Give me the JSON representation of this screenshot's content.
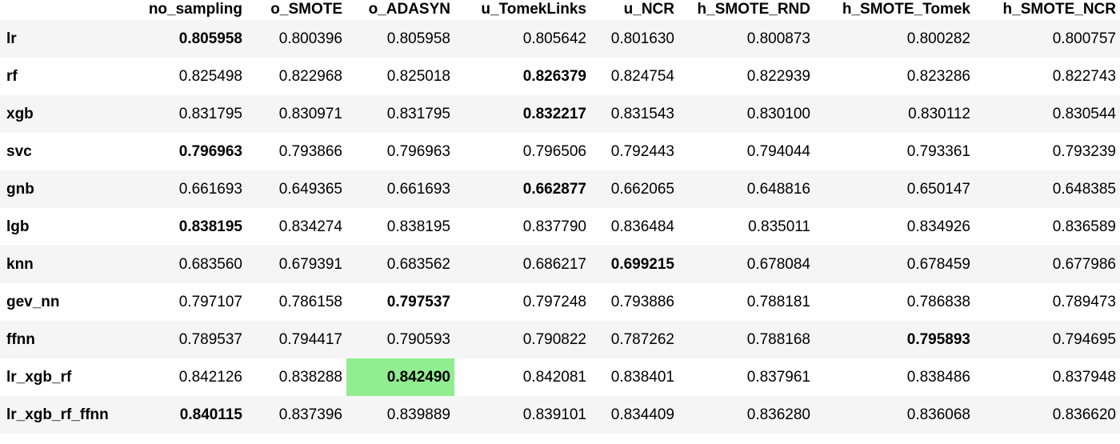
{
  "highlight_color": "#90ee90",
  "stripe_color": "#f5f5f5",
  "table": {
    "columns": [
      "no_sampling",
      "o_SMOTE",
      "o_ADASYN",
      "u_TomekLinks",
      "u_NCR",
      "h_SMOTE_RND",
      "h_SMOTE_Tomek",
      "h_SMOTE_NCR"
    ],
    "rows": [
      {
        "label": "lr",
        "values": [
          "0.805958",
          "0.800396",
          "0.805958",
          "0.805642",
          "0.801630",
          "0.800873",
          "0.800282",
          "0.800757"
        ],
        "bold": [
          0
        ]
      },
      {
        "label": "rf",
        "values": [
          "0.825498",
          "0.822968",
          "0.825018",
          "0.826379",
          "0.824754",
          "0.822939",
          "0.823286",
          "0.822743"
        ],
        "bold": [
          3
        ]
      },
      {
        "label": "xgb",
        "values": [
          "0.831795",
          "0.830971",
          "0.831795",
          "0.832217",
          "0.831543",
          "0.830100",
          "0.830112",
          "0.830544"
        ],
        "bold": [
          3
        ]
      },
      {
        "label": "svc",
        "values": [
          "0.796963",
          "0.793866",
          "0.796963",
          "0.796506",
          "0.792443",
          "0.794044",
          "0.793361",
          "0.793239"
        ],
        "bold": [
          0
        ]
      },
      {
        "label": "gnb",
        "values": [
          "0.661693",
          "0.649365",
          "0.661693",
          "0.662877",
          "0.662065",
          "0.648816",
          "0.650147",
          "0.648385"
        ],
        "bold": [
          3
        ]
      },
      {
        "label": "lgb",
        "values": [
          "0.838195",
          "0.834274",
          "0.838195",
          "0.837790",
          "0.836484",
          "0.835011",
          "0.834926",
          "0.836589"
        ],
        "bold": [
          0
        ]
      },
      {
        "label": "knn",
        "values": [
          "0.683560",
          "0.679391",
          "0.683562",
          "0.686217",
          "0.699215",
          "0.678084",
          "0.678459",
          "0.677986"
        ],
        "bold": [
          4
        ]
      },
      {
        "label": "gev_nn",
        "values": [
          "0.797107",
          "0.786158",
          "0.797537",
          "0.797248",
          "0.793886",
          "0.788181",
          "0.786838",
          "0.789473"
        ],
        "bold": [
          2
        ]
      },
      {
        "label": "ffnn",
        "values": [
          "0.789537",
          "0.794417",
          "0.790593",
          "0.790822",
          "0.787262",
          "0.788168",
          "0.795893",
          "0.794695"
        ],
        "bold": [
          6
        ]
      },
      {
        "label": "lr_xgb_rf",
        "values": [
          "0.842126",
          "0.838288",
          "0.842490",
          "0.842081",
          "0.838401",
          "0.837961",
          "0.838486",
          "0.837948"
        ],
        "bold": [
          2
        ],
        "highlight": [
          2
        ]
      },
      {
        "label": "lr_xgb_rf_ffnn",
        "values": [
          "0.840115",
          "0.837396",
          "0.839889",
          "0.839101",
          "0.834409",
          "0.836280",
          "0.836068",
          "0.836620"
        ],
        "bold": [
          0
        ]
      }
    ]
  }
}
